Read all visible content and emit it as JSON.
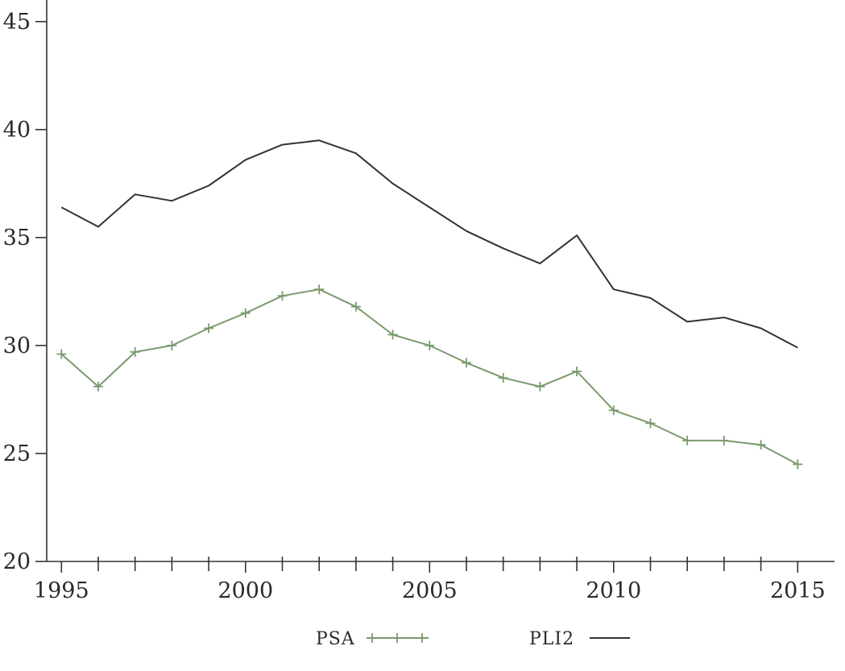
{
  "chart_data": {
    "type": "line",
    "title": "",
    "xlabel": "",
    "ylabel": "",
    "xlim": [
      1994.6,
      2016.0
    ],
    "ylim": [
      20,
      46
    ],
    "x_ticks": [
      1995,
      2000,
      2005,
      2010,
      2015
    ],
    "x_tick_labels": [
      "1995",
      "2000",
      "2005",
      "2010",
      "2015"
    ],
    "x_minor_ticks": [
      1996,
      1997,
      1998,
      1999,
      2001,
      2002,
      2003,
      2004,
      2006,
      2007,
      2008,
      2009,
      2011,
      2012,
      2013,
      2014
    ],
    "y_ticks": [
      20,
      25,
      30,
      35,
      40,
      45
    ],
    "y_tick_labels": [
      "20",
      "25",
      "30",
      "35",
      "40",
      "45"
    ],
    "grid": false,
    "legend_position": "bottom",
    "series": [
      {
        "name": "PSA",
        "color": "#7a9a6e",
        "marker": "plus",
        "x": [
          1995,
          1996,
          1997,
          1998,
          1999,
          2000,
          2001,
          2002,
          2003,
          2004,
          2005,
          2006,
          2007,
          2008,
          2009,
          2010,
          2011,
          2012,
          2013,
          2014,
          2015
        ],
        "y": [
          29.6,
          28.1,
          29.7,
          30.0,
          30.8,
          31.5,
          32.3,
          32.6,
          31.8,
          30.5,
          30.0,
          29.2,
          28.5,
          28.1,
          28.8,
          27.0,
          26.4,
          25.6,
          25.6,
          25.4,
          24.5
        ]
      },
      {
        "name": "PLI2",
        "color": "#333333",
        "marker": "none",
        "x": [
          1995,
          1996,
          1997,
          1998,
          1999,
          2000,
          2001,
          2002,
          2003,
          2004,
          2005,
          2006,
          2007,
          2008,
          2009,
          2010,
          2011,
          2012,
          2013,
          2014,
          2015
        ],
        "y": [
          36.4,
          35.5,
          37.0,
          36.7,
          37.4,
          38.6,
          39.3,
          39.5,
          38.9,
          37.5,
          36.4,
          35.3,
          34.5,
          33.8,
          35.1,
          32.6,
          32.2,
          31.1,
          31.3,
          30.8,
          29.9
        ]
      }
    ]
  }
}
